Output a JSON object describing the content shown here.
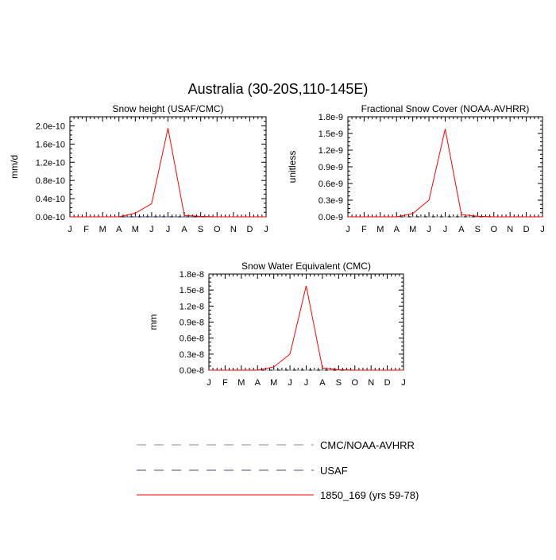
{
  "figure": {
    "title": "Australia (30-20S,110-145E)"
  },
  "months": [
    "J",
    "F",
    "M",
    "A",
    "M",
    "J",
    "J",
    "A",
    "S",
    "O",
    "N",
    "D",
    "J"
  ],
  "legend": [
    {
      "label": "CMC/NOAA-AVHRR",
      "color": "#888888",
      "dash": "dashed"
    },
    {
      "label": "USAF",
      "color": "#4a4a8a",
      "dash": "dashed"
    },
    {
      "label": "1850_169 (yrs 59-78)",
      "color": "#ff0000",
      "dash": "solid"
    }
  ],
  "chart_data": [
    {
      "type": "line",
      "title": "Snow height (USAF/CMC)",
      "ylabel": "mm/d",
      "ylim": [
        0,
        2.2e-10
      ],
      "yticks": [
        0,
        4e-11,
        8e-11,
        1.2e-10,
        1.6e-10,
        2e-10
      ],
      "ytick_labels": [
        "0.0e-10",
        "0.4e-10",
        "0.8e-10",
        "1.2e-10",
        "1.6e-10",
        "2.0e-10"
      ],
      "x": [
        "J",
        "F",
        "M",
        "A",
        "M",
        "J",
        "J",
        "A",
        "S",
        "O",
        "N",
        "D",
        "J"
      ],
      "series": [
        {
          "name": "USAF",
          "color": "#4a4a8a",
          "dash": "dashed",
          "values": [
            0,
            0,
            0,
            0,
            0,
            0,
            0,
            0,
            0,
            0,
            0,
            0,
            0
          ]
        },
        {
          "name": "1850_169 (yrs 59-78)",
          "color": "#ff0000",
          "dash": "solid",
          "values": [
            0,
            0,
            0,
            0,
            8e-12,
            2.9e-11,
            1.95e-10,
            3e-12,
            1e-12,
            0,
            0,
            0,
            0
          ]
        }
      ]
    },
    {
      "type": "line",
      "title": "Fractional Snow Cover (NOAA-AVHRR)",
      "ylabel": "unitless",
      "ylim": [
        0,
        1.8e-09
      ],
      "yticks": [
        0,
        3e-10,
        6e-10,
        9e-10,
        1.2e-09,
        1.5e-09,
        1.8e-09
      ],
      "ytick_labels": [
        "0.0e-9",
        "0.3e-9",
        "0.6e-9",
        "0.9e-9",
        "1.2e-9",
        "1.5e-9",
        "1.8e-9"
      ],
      "x": [
        "J",
        "F",
        "M",
        "A",
        "M",
        "J",
        "J",
        "A",
        "S",
        "O",
        "N",
        "D",
        "J"
      ],
      "series": [
        {
          "name": "CMC/NOAA-AVHRR",
          "color": "#888888",
          "dash": "dashed",
          "values": [
            0,
            0,
            0,
            0,
            0,
            0,
            0,
            0,
            0,
            0,
            0,
            0,
            0
          ]
        },
        {
          "name": "1850_169 (yrs 59-78)",
          "color": "#ff0000",
          "dash": "solid",
          "values": [
            0,
            0,
            0,
            0,
            6e-11,
            3e-10,
            1.58e-09,
            4e-11,
            1e-11,
            0,
            0,
            0,
            0
          ]
        }
      ]
    },
    {
      "type": "line",
      "title": "Snow Water Equivalent (CMC)",
      "ylabel": "mm",
      "ylim": [
        0,
        1.8e-08
      ],
      "yticks": [
        0,
        3e-09,
        6e-09,
        9e-09,
        1.2e-08,
        1.5e-08,
        1.8e-08
      ],
      "ytick_labels": [
        "0.0e-8",
        "0.3e-8",
        "0.6e-8",
        "0.9e-8",
        "1.2e-8",
        "1.5e-8",
        "1.8e-8"
      ],
      "x": [
        "J",
        "F",
        "M",
        "A",
        "M",
        "J",
        "J",
        "A",
        "S",
        "O",
        "N",
        "D",
        "J"
      ],
      "series": [
        {
          "name": "CMC/NOAA-AVHRR",
          "color": "#888888",
          "dash": "dashed",
          "values": [
            0,
            0,
            0,
            0,
            0,
            0,
            0,
            0,
            0,
            0,
            0,
            0,
            0
          ]
        },
        {
          "name": "1850_169 (yrs 59-78)",
          "color": "#ff0000",
          "dash": "solid",
          "values": [
            0,
            0,
            0,
            0,
            6e-10,
            3e-09,
            1.58e-08,
            4e-10,
            1e-10,
            0,
            0,
            0,
            0
          ]
        }
      ]
    }
  ]
}
